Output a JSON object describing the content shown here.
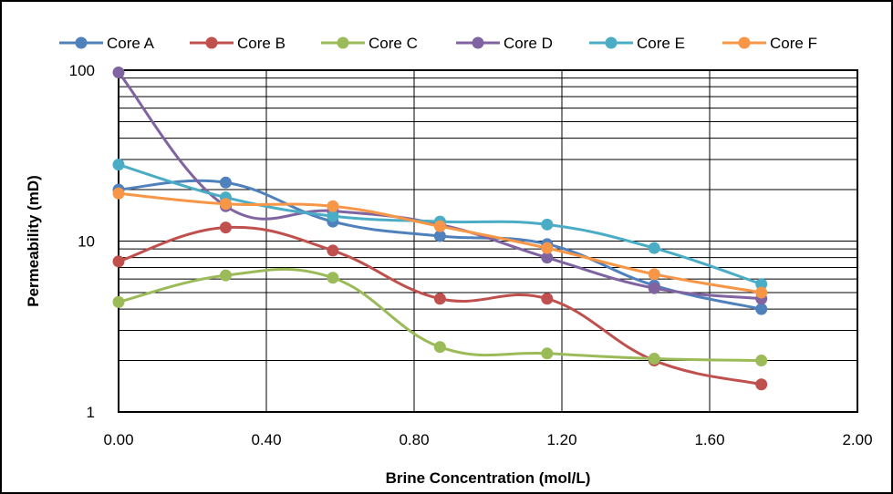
{
  "chart_data": {
    "type": "line",
    "title": "",
    "xlabel": "Brine Concentration (mol/L)",
    "ylabel": "Permeability (mD)",
    "xlim": [
      0,
      2
    ],
    "ylim": [
      1,
      100
    ],
    "y_scale": "log",
    "grid": true,
    "legend_position": "top",
    "x_ticks": [
      "0.00",
      "0.40",
      "0.80",
      "1.20",
      "1.60",
      "2.00"
    ],
    "y_ticks": [
      "1",
      "10",
      "100"
    ],
    "x": [
      0,
      0.29,
      0.58,
      0.87,
      1.16,
      1.45,
      1.74
    ],
    "series": [
      {
        "name": "Core A",
        "color": "#4F81BD",
        "values": [
          20,
          22,
          13,
          10.7,
          9.6,
          5.5,
          4.0
        ]
      },
      {
        "name": "Core B",
        "color": "#C0504D",
        "values": [
          7.6,
          12,
          8.8,
          4.6,
          4.6,
          2.0,
          1.45
        ]
      },
      {
        "name": "Core C",
        "color": "#9BBB59",
        "values": [
          4.4,
          6.3,
          6.1,
          2.4,
          2.2,
          2.05,
          2.0
        ]
      },
      {
        "name": "Core D",
        "color": "#8064A2",
        "values": [
          97,
          16,
          15,
          12.5,
          8.0,
          5.3,
          4.6
        ]
      },
      {
        "name": "Core E",
        "color": "#4BACC6",
        "values": [
          28,
          18,
          14,
          13,
          12.5,
          9.1,
          5.6
        ]
      },
      {
        "name": "Core F",
        "color": "#F79646",
        "values": [
          19,
          16.5,
          16,
          12.2,
          9.1,
          6.4,
          5.0
        ]
      }
    ]
  }
}
